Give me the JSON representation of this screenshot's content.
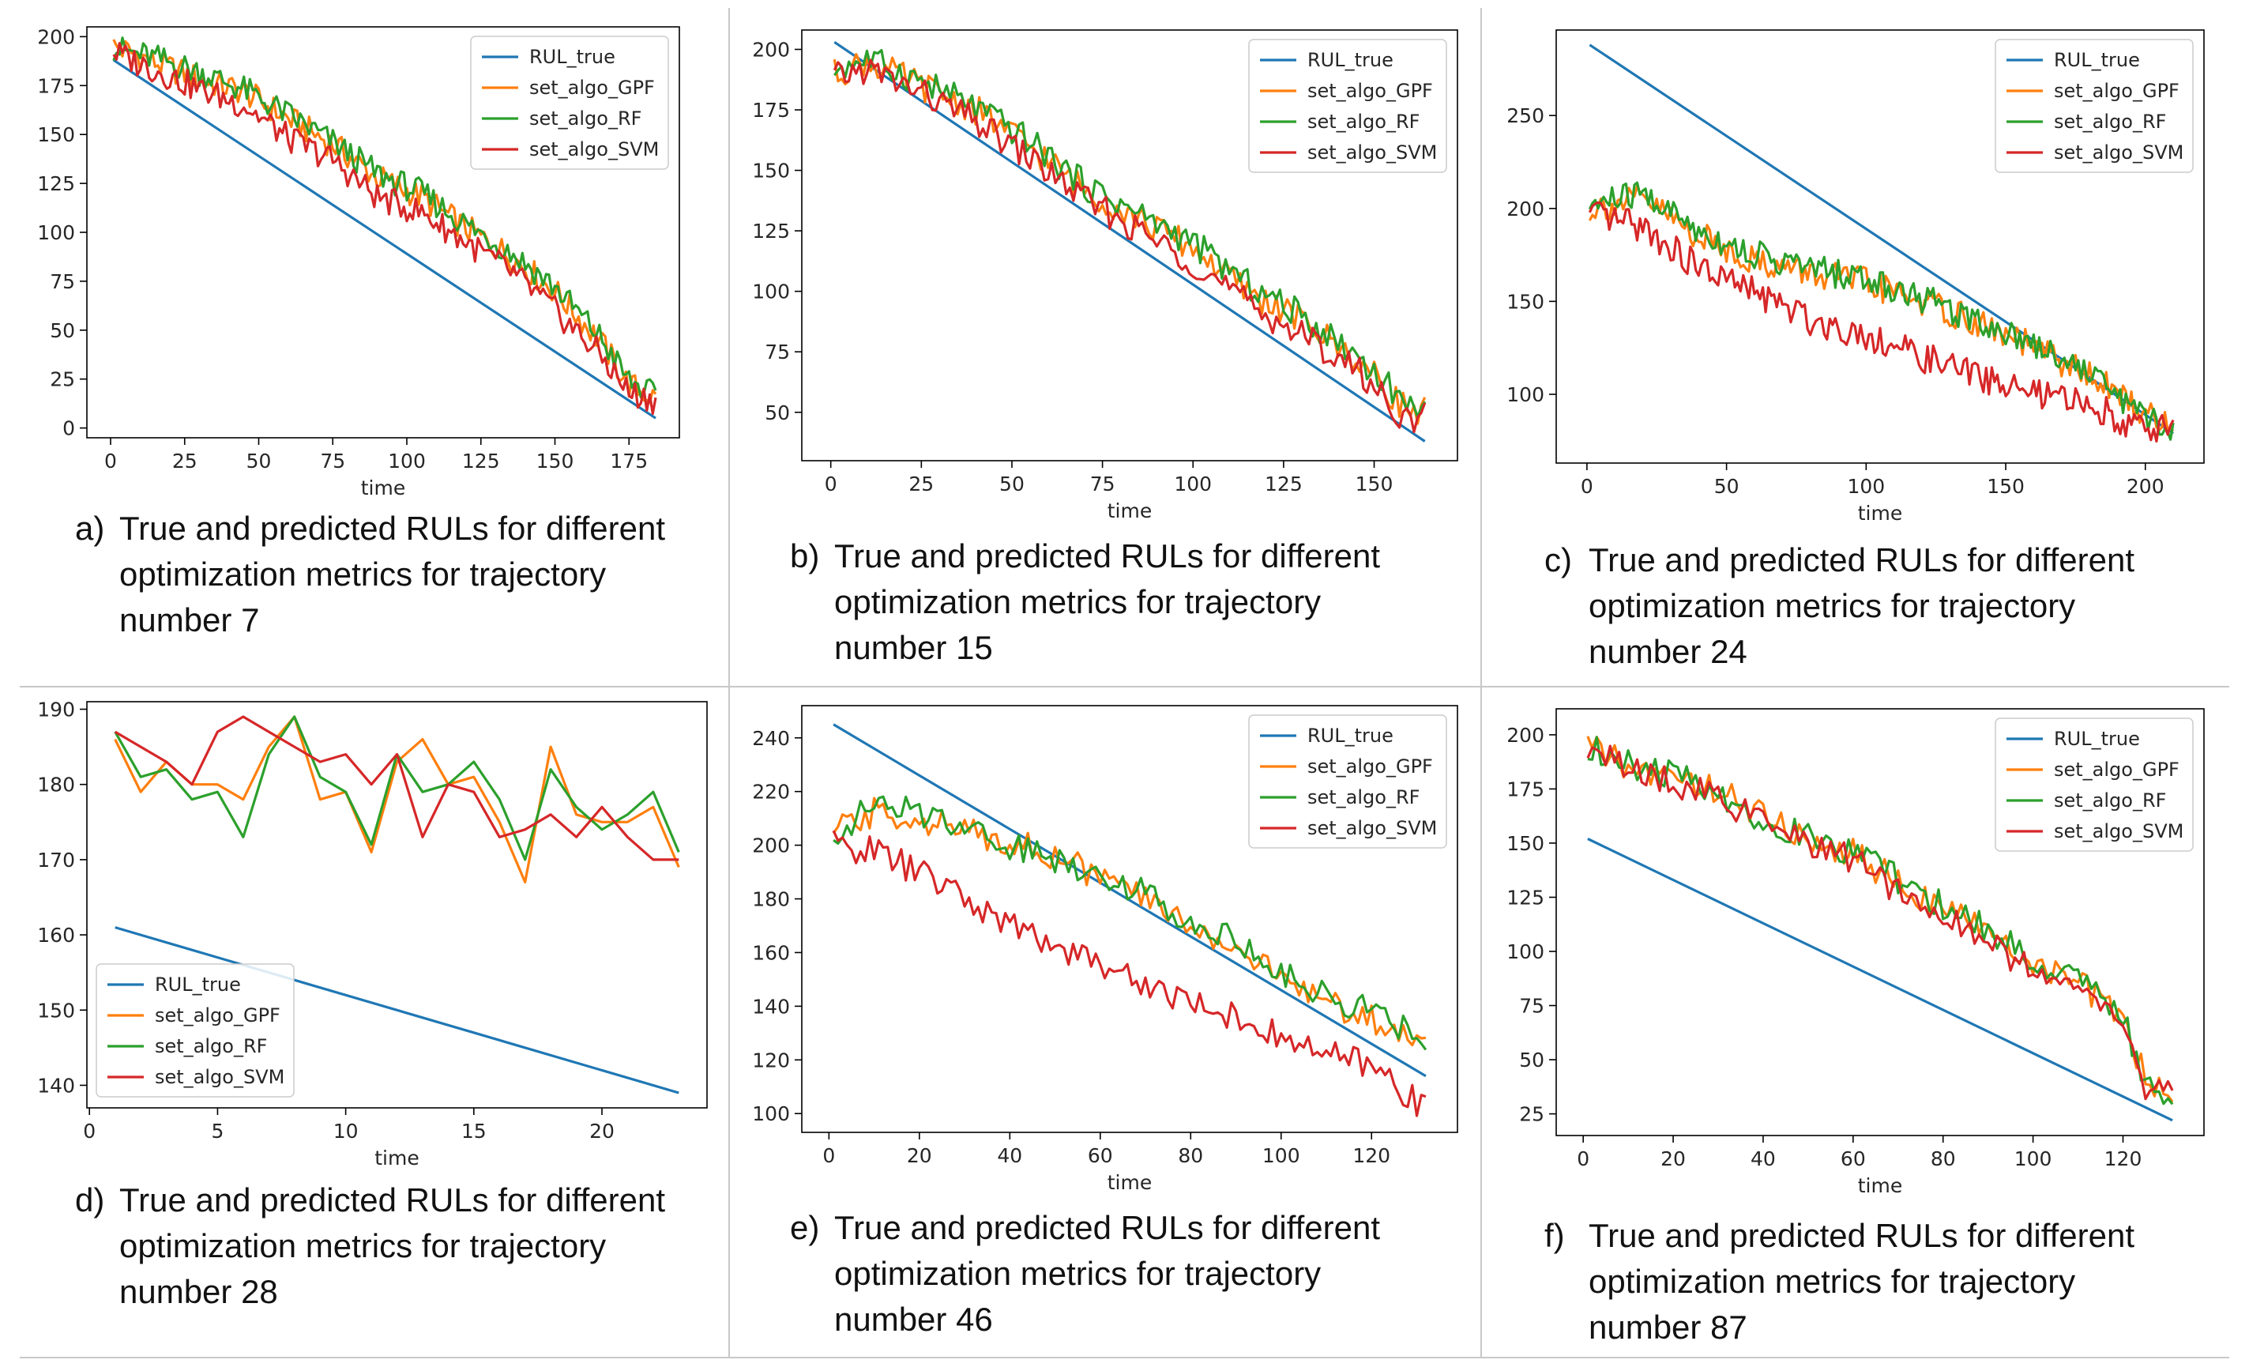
{
  "colors": {
    "RUL_true": "#1f77b4",
    "set_algo_GPF": "#ff7f0e",
    "set_algo_RF": "#2ca02c",
    "set_algo_SVM": "#d62728"
  },
  "panels": [
    {
      "letter": "a)",
      "caption": [
        "True and predicted RULs for different",
        "optimization metrics for trajectory",
        "number 7"
      ]
    },
    {
      "letter": "b)",
      "caption": [
        "True and predicted RULs for different",
        "optimization metrics for trajectory",
        "number 15"
      ]
    },
    {
      "letter": "c)",
      "caption": [
        "True and predicted RULs for different",
        "optimization metrics for trajectory",
        "number 24"
      ]
    },
    {
      "letter": "d)",
      "caption": [
        "True and predicted RULs for different",
        "optimization metrics for trajectory",
        "number 28"
      ]
    },
    {
      "letter": "e)",
      "caption": [
        "True and predicted RULs for different",
        "optimization metrics for trajectory",
        "number 46"
      ]
    },
    {
      "letter": "f)",
      "caption": [
        "True and predicted RULs for different",
        "optimization metrics for trajectory",
        "number 87"
      ]
    }
  ],
  "chart_data": [
    {
      "type": "line",
      "xlabel": "time",
      "ylabel": "",
      "xlim": [
        -8,
        192
      ],
      "ylim": [
        -5,
        205
      ],
      "xticks": [
        0,
        25,
        50,
        75,
        100,
        125,
        150,
        175
      ],
      "yticks": [
        0,
        25,
        50,
        75,
        100,
        125,
        150,
        175,
        200
      ],
      "legend": "top-right",
      "series": [
        {
          "name": "RUL_true",
          "x": [
            1,
            184
          ],
          "y": [
            188,
            5
          ]
        },
        {
          "name": "set_algo_GPF",
          "x": [
            1,
            15,
            30,
            45,
            60,
            75,
            90,
            105,
            120,
            135,
            150,
            165,
            175,
            184
          ],
          "y": [
            195,
            187,
            178,
            172,
            158,
            145,
            128,
            118,
            102,
            88,
            70,
            45,
            22,
            15
          ]
        },
        {
          "name": "set_algo_RF",
          "x": [
            1,
            15,
            30,
            45,
            60,
            75,
            90,
            105,
            120,
            135,
            150,
            165,
            175,
            184
          ],
          "y": [
            194,
            189,
            182,
            173,
            160,
            146,
            130,
            120,
            104,
            90,
            72,
            47,
            24,
            16
          ]
        },
        {
          "name": "set_algo_SVM",
          "x": [
            1,
            15,
            30,
            45,
            60,
            75,
            90,
            105,
            120,
            135,
            150,
            165,
            175,
            184
          ],
          "y": [
            192,
            183,
            173,
            165,
            148,
            137,
            118,
            110,
            95,
            80,
            60,
            38,
            18,
            14
          ]
        }
      ]
    },
    {
      "type": "line",
      "xlabel": "time",
      "ylabel": "",
      "xlim": [
        -8,
        173
      ],
      "ylim": [
        30,
        208
      ],
      "xticks": [
        0,
        25,
        50,
        75,
        100,
        125,
        150
      ],
      "yticks": [
        50,
        75,
        100,
        125,
        150,
        175,
        200
      ],
      "legend": "top-right",
      "series": [
        {
          "name": "RUL_true",
          "x": [
            1,
            164
          ],
          "y": [
            203,
            38
          ]
        },
        {
          "name": "set_algo_GPF",
          "x": [
            1,
            10,
            25,
            40,
            55,
            70,
            85,
            100,
            115,
            130,
            145,
            160,
            164
          ],
          "y": [
            190,
            195,
            185,
            175,
            160,
            142,
            130,
            118,
            100,
            88,
            72,
            50,
            52
          ]
        },
        {
          "name": "set_algo_RF",
          "x": [
            1,
            10,
            25,
            40,
            55,
            70,
            85,
            100,
            115,
            130,
            145,
            160,
            164
          ],
          "y": [
            192,
            196,
            187,
            176,
            162,
            144,
            132,
            120,
            103,
            90,
            74,
            52,
            55
          ]
        },
        {
          "name": "set_algo_SVM",
          "x": [
            1,
            10,
            25,
            40,
            55,
            70,
            85,
            100,
            115,
            130,
            145,
            160,
            164
          ],
          "y": [
            188,
            192,
            182,
            170,
            155,
            138,
            125,
            112,
            95,
            82,
            68,
            45,
            48
          ]
        }
      ]
    },
    {
      "type": "line",
      "xlabel": "time",
      "ylabel": "",
      "xlim": [
        -11,
        221
      ],
      "ylim": [
        63,
        296
      ],
      "xticks": [
        0,
        50,
        100,
        150,
        200
      ],
      "yticks": [
        100,
        150,
        200,
        250
      ],
      "legend": "top-right",
      "series": [
        {
          "name": "RUL_true",
          "x": [
            1,
            210
          ],
          "y": [
            288,
            79
          ]
        },
        {
          "name": "set_algo_GPF",
          "x": [
            1,
            20,
            40,
            60,
            80,
            100,
            120,
            140,
            160,
            180,
            200,
            210
          ],
          "y": [
            200,
            205,
            185,
            172,
            165,
            160,
            150,
            138,
            125,
            110,
            90,
            82
          ]
        },
        {
          "name": "set_algo_RF",
          "x": [
            1,
            20,
            40,
            60,
            80,
            100,
            120,
            140,
            160,
            180,
            200,
            210
          ],
          "y": [
            202,
            208,
            188,
            175,
            168,
            162,
            152,
            140,
            128,
            112,
            88,
            80
          ]
        },
        {
          "name": "set_algo_SVM",
          "x": [
            1,
            20,
            40,
            60,
            80,
            100,
            120,
            140,
            160,
            180,
            200,
            210
          ],
          "y": [
            196,
            190,
            168,
            155,
            140,
            132,
            120,
            110,
            100,
            95,
            80,
            85
          ]
        }
      ]
    },
    {
      "type": "line",
      "xlabel": "time",
      "ylabel": "",
      "xlim": [
        -0.1,
        24.1
      ],
      "ylim": [
        137,
        191
      ],
      "xticks": [
        0,
        5,
        10,
        15,
        20
      ],
      "yticks": [
        140,
        150,
        160,
        170,
        180,
        190
      ],
      "legend": "lower-left",
      "series": [
        {
          "name": "RUL_true",
          "x": [
            1,
            23
          ],
          "y": [
            161,
            139
          ]
        },
        {
          "name": "set_algo_GPF",
          "x": [
            1,
            2,
            3,
            4,
            5,
            6,
            7,
            8,
            9,
            10,
            11,
            12,
            13,
            14,
            15,
            16,
            17,
            18,
            19,
            20,
            21,
            22,
            23
          ],
          "y": [
            186,
            179,
            183,
            180,
            180,
            178,
            185,
            189,
            178,
            179,
            171,
            183,
            186,
            180,
            181,
            175,
            167,
            185,
            176,
            175,
            175,
            177,
            169
          ]
        },
        {
          "name": "set_algo_RF",
          "x": [
            1,
            2,
            3,
            4,
            5,
            6,
            7,
            8,
            9,
            10,
            11,
            12,
            13,
            14,
            15,
            16,
            17,
            18,
            19,
            20,
            21,
            22,
            23
          ],
          "y": [
            187,
            181,
            182,
            178,
            179,
            173,
            184,
            189,
            181,
            179,
            172,
            184,
            179,
            180,
            183,
            178,
            170,
            182,
            177,
            174,
            176,
            179,
            171
          ]
        },
        {
          "name": "set_algo_SVM",
          "x": [
            1,
            2,
            3,
            4,
            5,
            6,
            7,
            8,
            9,
            10,
            11,
            12,
            13,
            14,
            15,
            16,
            17,
            18,
            19,
            20,
            21,
            22,
            23
          ],
          "y": [
            187,
            185,
            183,
            180,
            187,
            189,
            187,
            185,
            183,
            184,
            180,
            184,
            173,
            180,
            179,
            173,
            174,
            176,
            173,
            177,
            173,
            170,
            170
          ]
        }
      ]
    },
    {
      "type": "line",
      "xlabel": "time",
      "ylabel": "",
      "xlim": [
        -6,
        139
      ],
      "ylim": [
        93,
        252
      ],
      "xticks": [
        0,
        20,
        40,
        60,
        80,
        100,
        120
      ],
      "yticks": [
        100,
        120,
        140,
        160,
        180,
        200,
        220,
        240
      ],
      "legend": "top-right",
      "series": [
        {
          "name": "RUL_true",
          "x": [
            1,
            132
          ],
          "y": [
            245,
            114
          ]
        },
        {
          "name": "set_algo_GPF",
          "x": [
            1,
            10,
            20,
            30,
            40,
            50,
            60,
            70,
            80,
            90,
            100,
            110,
            120,
            132
          ],
          "y": [
            205,
            212,
            210,
            205,
            202,
            196,
            188,
            180,
            170,
            162,
            150,
            142,
            135,
            125
          ]
        },
        {
          "name": "set_algo_RF",
          "x": [
            1,
            10,
            20,
            30,
            40,
            50,
            60,
            70,
            80,
            90,
            100,
            110,
            120,
            132
          ],
          "y": [
            204,
            215,
            212,
            208,
            200,
            195,
            190,
            182,
            172,
            165,
            152,
            144,
            138,
            128
          ]
        },
        {
          "name": "set_algo_SVM",
          "x": [
            1,
            10,
            20,
            30,
            40,
            50,
            60,
            70,
            80,
            90,
            100,
            110,
            120,
            132
          ],
          "y": [
            200,
            198,
            190,
            180,
            170,
            163,
            156,
            148,
            142,
            136,
            128,
            122,
            118,
            102
          ]
        }
      ]
    },
    {
      "type": "line",
      "xlabel": "time",
      "ylabel": "",
      "xlim": [
        -6,
        138
      ],
      "ylim": [
        15,
        212
      ],
      "xticks": [
        0,
        20,
        40,
        60,
        80,
        100,
        120
      ],
      "yticks": [
        25,
        50,
        75,
        100,
        125,
        150,
        175,
        200
      ],
      "legend": "top-right",
      "series": [
        {
          "name": "RUL_true",
          "x": [
            1,
            131
          ],
          "y": [
            152,
            22
          ]
        },
        {
          "name": "set_algo_GPF",
          "x": [
            1,
            10,
            20,
            30,
            40,
            50,
            60,
            70,
            80,
            90,
            100,
            110,
            120,
            125,
            131
          ],
          "y": [
            195,
            185,
            180,
            175,
            162,
            152,
            145,
            132,
            120,
            108,
            95,
            85,
            70,
            40,
            32
          ]
        },
        {
          "name": "set_algo_RF",
          "x": [
            1,
            10,
            20,
            30,
            40,
            50,
            60,
            70,
            80,
            90,
            100,
            110,
            120,
            125,
            131
          ],
          "y": [
            195,
            186,
            181,
            174,
            160,
            153,
            146,
            133,
            121,
            110,
            96,
            86,
            72,
            38,
            30
          ]
        },
        {
          "name": "set_algo_SVM",
          "x": [
            1,
            10,
            20,
            30,
            40,
            50,
            60,
            70,
            80,
            90,
            100,
            110,
            120,
            125,
            131
          ],
          "y": [
            194,
            184,
            178,
            172,
            158,
            150,
            142,
            128,
            118,
            104,
            92,
            82,
            68,
            36,
            34
          ]
        }
      ]
    }
  ]
}
